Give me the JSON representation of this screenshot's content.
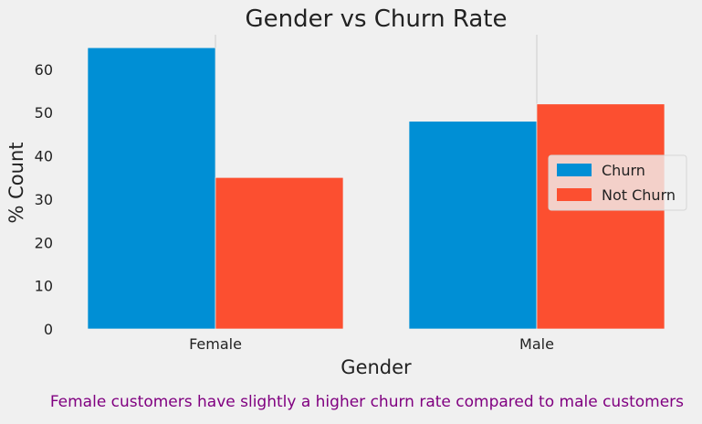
{
  "chart_data": {
    "type": "bar",
    "title": "Gender vs Churn Rate",
    "xlabel": "Gender",
    "ylabel": "% Count",
    "categories": [
      "Female",
      "Male"
    ],
    "series": [
      {
        "name": "Churn",
        "values": [
          65.0,
          48.0
        ]
      },
      {
        "name": "Not Churn",
        "values": [
          35.0,
          52.0
        ]
      }
    ],
    "ylim": [
      0,
      68
    ],
    "yticks": [
      0,
      10,
      20,
      30,
      40,
      50,
      60
    ],
    "grid": false,
    "legend_position": "center-right",
    "colors": [
      "#008fd5",
      "#fc4f30"
    ]
  },
  "caption": "Female customers have slightly a higher churn rate compared to male customers"
}
